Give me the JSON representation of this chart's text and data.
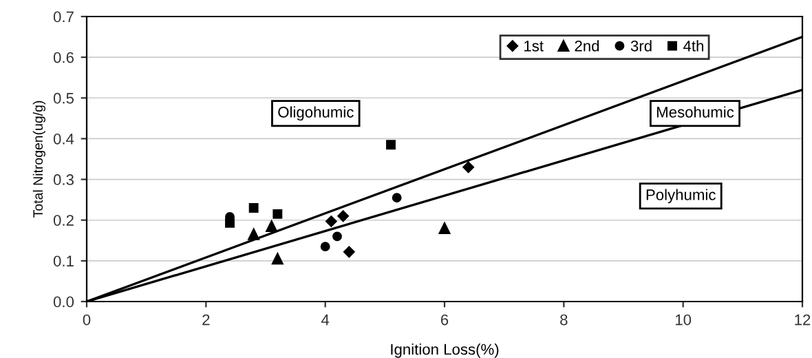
{
  "chart_data": {
    "type": "scatter",
    "xlabel": "Ignition Loss(%)",
    "ylabel": "Total Nitrogen(ug/g)",
    "xlim": [
      0,
      12
    ],
    "ylim": [
      0,
      0.7
    ],
    "xticks": [
      0,
      2,
      4,
      6,
      8,
      10,
      12
    ],
    "yticks": [
      {
        "value": 0,
        "label": "0.0"
      },
      0.1,
      0.2,
      0.3,
      0.4,
      0.5,
      0.6,
      0.7
    ],
    "grid": "y",
    "legend": "top right",
    "series": [
      {
        "name": "1st",
        "color": "#000000",
        "marker": "diamond",
        "x": [
          4.1,
          4.3,
          4.4,
          6.4
        ],
        "values": [
          0.197,
          0.21,
          0.122,
          0.33
        ]
      },
      {
        "name": "2nd",
        "color": "#000000",
        "marker": "triangle",
        "x": [
          2.8,
          3.1,
          3.2,
          6.0
        ],
        "values": [
          0.165,
          0.185,
          0.105,
          0.18
        ]
      },
      {
        "name": "3rd",
        "color": "#000000",
        "marker": "circle",
        "x": [
          2.4,
          4.0,
          4.2,
          5.2
        ],
        "values": [
          0.208,
          0.135,
          0.16,
          0.255
        ]
      },
      {
        "name": "4th",
        "color": "#000000",
        "marker": "square",
        "x": [
          2.4,
          2.8,
          3.2,
          5.1
        ],
        "values": [
          0.193,
          0.23,
          0.215,
          0.385
        ]
      },
      {
        "type": "line",
        "color": "#000000",
        "x": [
          0,
          12
        ],
        "values": [
          0,
          0.65
        ]
      },
      {
        "type": "line",
        "color": "#000000",
        "x": [
          0,
          12
        ],
        "values": [
          0,
          0.52
        ]
      }
    ],
    "annotations": [
      "Oligohumic",
      "Mesohumic",
      "Polyhumic"
    ]
  }
}
